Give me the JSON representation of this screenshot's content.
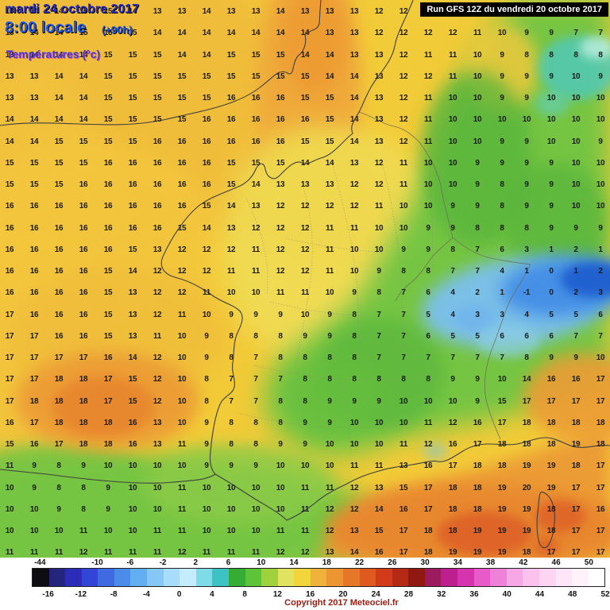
{
  "header": {
    "date": "mardi 24 octobre 2017",
    "time": "8:00 locale",
    "forecast_offset": "(+90h)",
    "parameter": "Températures (°c)"
  },
  "run_info": "Run GFS 12Z du vendredi 20 octobre 2017",
  "copyright": "Copyright 2017 Meteociel.fr",
  "colorbar": {
    "top_labels": [
      "-44",
      "-10",
      "-6",
      "-2",
      "2",
      "6",
      "10",
      "14",
      "18",
      "22",
      "26",
      "30",
      "34",
      "38",
      "42",
      "46",
      "50"
    ],
    "bottom_labels": [
      "-16",
      "-12",
      "-8",
      "-4",
      "0",
      "4",
      "8",
      "12",
      "16",
      "20",
      "24",
      "28",
      "32",
      "36",
      "40",
      "44",
      "48",
      "52"
    ],
    "colors": [
      "#0d0d12",
      "#25257d",
      "#2c2cb8",
      "#3345d6",
      "#3f6ae2",
      "#4b8ceb",
      "#61aef2",
      "#85c8f8",
      "#a7dcfa",
      "#c3ecfc",
      "#7edce6",
      "#3dc3c3",
      "#35ad35",
      "#5ec437",
      "#9ed13b",
      "#dfe35f",
      "#f2d53a",
      "#f0b23a",
      "#ec9531",
      "#e67728",
      "#df5a20",
      "#d23b19",
      "#b52a14",
      "#901811",
      "#9c1a5e",
      "#bd1f8e",
      "#d633ae",
      "#e75ac8",
      "#f081d8",
      "#f7a7e6",
      "#fbc2ee",
      "#fdd5f3",
      "#fee6f8",
      "#fff2fb",
      "#ffffff"
    ]
  },
  "grid": {
    "values": [
      [
        13,
        14,
        14,
        15,
        15,
        14,
        13,
        13,
        14,
        13,
        13,
        14,
        13,
        13,
        13,
        12,
        12,
        13,
        12,
        11,
        12,
        10,
        9,
        8,
        7
      ],
      [
        13,
        14,
        14,
        15,
        15,
        15,
        14,
        14,
        14,
        14,
        14,
        14,
        14,
        13,
        13,
        12,
        12,
        12,
        12,
        11,
        10,
        9,
        9,
        7,
        7
      ],
      [
        13,
        14,
        14,
        14,
        15,
        15,
        15,
        14,
        14,
        15,
        15,
        15,
        14,
        14,
        13,
        13,
        12,
        11,
        11,
        10,
        9,
        8,
        8,
        8,
        8
      ],
      [
        13,
        13,
        14,
        14,
        15,
        15,
        15,
        15,
        15,
        15,
        15,
        15,
        15,
        14,
        14,
        13,
        12,
        12,
        11,
        10,
        9,
        9,
        9,
        10,
        9
      ],
      [
        13,
        13,
        14,
        14,
        15,
        15,
        15,
        15,
        15,
        16,
        16,
        16,
        15,
        15,
        14,
        13,
        12,
        11,
        10,
        10,
        9,
        9,
        10,
        10,
        10
      ],
      [
        14,
        14,
        14,
        14,
        15,
        15,
        15,
        15,
        16,
        16,
        16,
        16,
        16,
        15,
        14,
        13,
        12,
        11,
        10,
        10,
        10,
        10,
        10,
        10,
        10
      ],
      [
        14,
        14,
        15,
        15,
        15,
        15,
        16,
        16,
        16,
        16,
        16,
        16,
        15,
        15,
        14,
        13,
        12,
        11,
        10,
        10,
        9,
        9,
        10,
        10,
        9
      ],
      [
        15,
        15,
        15,
        15,
        16,
        16,
        16,
        16,
        16,
        15,
        15,
        15,
        14,
        14,
        13,
        12,
        11,
        10,
        10,
        9,
        9,
        9,
        9,
        10,
        10
      ],
      [
        15,
        15,
        15,
        16,
        16,
        16,
        16,
        16,
        16,
        15,
        14,
        13,
        13,
        13,
        12,
        12,
        11,
        10,
        10,
        9,
        8,
        9,
        9,
        10,
        10
      ],
      [
        16,
        16,
        16,
        16,
        16,
        16,
        16,
        16,
        15,
        14,
        13,
        12,
        12,
        12,
        12,
        11,
        10,
        10,
        9,
        9,
        8,
        9,
        9,
        10,
        10
      ],
      [
        16,
        16,
        16,
        16,
        16,
        16,
        16,
        15,
        14,
        13,
        12,
        12,
        12,
        11,
        11,
        10,
        10,
        9,
        9,
        8,
        8,
        8,
        9,
        9,
        9
      ],
      [
        16,
        16,
        16,
        16,
        16,
        15,
        13,
        12,
        12,
        12,
        11,
        12,
        12,
        11,
        10,
        10,
        9,
        9,
        8,
        7,
        6,
        3,
        1,
        2,
        1
      ],
      [
        16,
        16,
        16,
        16,
        15,
        14,
        12,
        12,
        12,
        11,
        11,
        12,
        12,
        11,
        10,
        9,
        8,
        8,
        7,
        7,
        4,
        1,
        0,
        1,
        2
      ],
      [
        16,
        16,
        16,
        16,
        15,
        13,
        12,
        12,
        11,
        10,
        10,
        11,
        11,
        10,
        9,
        8,
        7,
        6,
        4,
        2,
        1,
        -1,
        0,
        2,
        3
      ],
      [
        17,
        16,
        16,
        16,
        15,
        13,
        12,
        11,
        10,
        9,
        9,
        9,
        10,
        9,
        8,
        7,
        7,
        5,
        4,
        3,
        3,
        4,
        5,
        5,
        6
      ],
      [
        17,
        17,
        16,
        16,
        15,
        13,
        11,
        10,
        9,
        8,
        8,
        8,
        9,
        9,
        8,
        7,
        7,
        6,
        5,
        5,
        6,
        6,
        6,
        7,
        7
      ],
      [
        17,
        17,
        17,
        17,
        16,
        14,
        12,
        10,
        9,
        8,
        7,
        8,
        8,
        8,
        8,
        7,
        7,
        7,
        7,
        7,
        7,
        8,
        9,
        9,
        10
      ],
      [
        17,
        17,
        18,
        18,
        17,
        15,
        12,
        10,
        8,
        7,
        7,
        7,
        8,
        8,
        8,
        8,
        8,
        8,
        9,
        9,
        10,
        14,
        16,
        16,
        17
      ],
      [
        17,
        18,
        18,
        18,
        17,
        15,
        12,
        10,
        8,
        7,
        7,
        8,
        8,
        9,
        9,
        9,
        10,
        10,
        10,
        9,
        15,
        17,
        17,
        17,
        17
      ],
      [
        16,
        17,
        18,
        18,
        18,
        16,
        13,
        10,
        9,
        8,
        8,
        8,
        9,
        9,
        10,
        10,
        10,
        11,
        12,
        16,
        17,
        18,
        18,
        18,
        18
      ],
      [
        15,
        16,
        17,
        18,
        18,
        16,
        13,
        11,
        9,
        8,
        8,
        9,
        9,
        10,
        10,
        10,
        11,
        12,
        16,
        17,
        18,
        18,
        18,
        19,
        18
      ],
      [
        11,
        9,
        8,
        9,
        10,
        10,
        10,
        10,
        9,
        9,
        9,
        10,
        10,
        10,
        11,
        11,
        13,
        16,
        17,
        18,
        18,
        19,
        19,
        18,
        17
      ],
      [
        10,
        9,
        8,
        8,
        9,
        10,
        10,
        11,
        10,
        10,
        10,
        10,
        11,
        11,
        12,
        13,
        15,
        17,
        18,
        18,
        19,
        20,
        19,
        17,
        17
      ],
      [
        10,
        10,
        9,
        8,
        9,
        10,
        10,
        11,
        10,
        10,
        10,
        10,
        11,
        12,
        12,
        14,
        16,
        17,
        18,
        18,
        19,
        19,
        18,
        17,
        16
      ],
      [
        10,
        10,
        10,
        11,
        10,
        10,
        11,
        11,
        10,
        10,
        10,
        11,
        11,
        12,
        13,
        15,
        17,
        18,
        18,
        19,
        19,
        19,
        18,
        17,
        17
      ],
      [
        11,
        11,
        11,
        12,
        11,
        11,
        11,
        12,
        11,
        11,
        11,
        12,
        12,
        13,
        14,
        16,
        17,
        18,
        19,
        19,
        19,
        18,
        17,
        17,
        17
      ]
    ]
  }
}
